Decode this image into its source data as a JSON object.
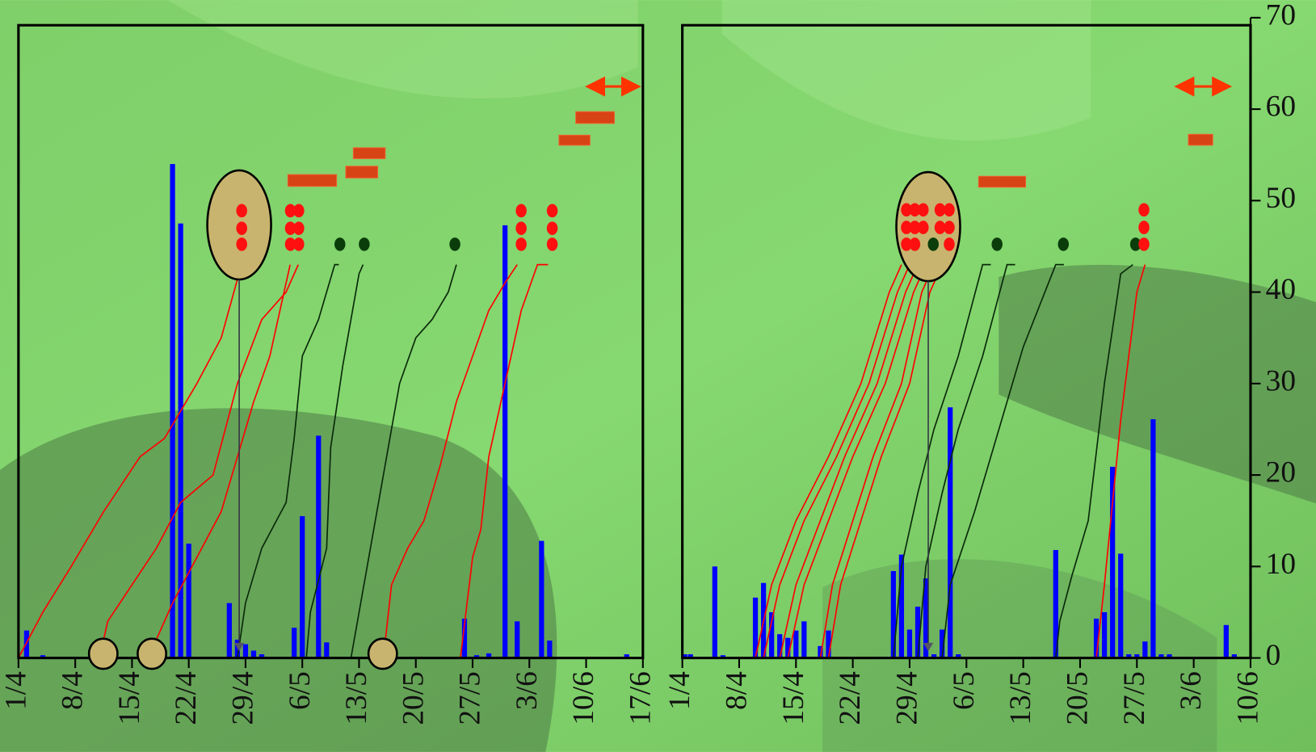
{
  "chart_data": [
    {
      "type": "combo",
      "xlim": [
        0,
        77
      ],
      "ylim": [
        0,
        70
      ],
      "xticks": [
        {
          "value": 0,
          "label": "1/4"
        },
        {
          "value": 7,
          "label": "8/4"
        },
        {
          "value": 14,
          "label": "15/4"
        },
        {
          "value": 21,
          "label": "22/4"
        },
        {
          "value": 28,
          "label": "29/4"
        },
        {
          "value": 35,
          "label": "6/5"
        },
        {
          "value": 42,
          "label": "13/5"
        },
        {
          "value": 49,
          "label": "20/5"
        },
        {
          "value": 56,
          "label": "27/5"
        },
        {
          "value": 63,
          "label": "3/6"
        },
        {
          "value": 70,
          "label": "10/6"
        },
        {
          "value": 77,
          "label": "17/6"
        }
      ],
      "bars": {
        "color": "#0000ff",
        "x": [
          1,
          3,
          19,
          20,
          21,
          26,
          27,
          28,
          29,
          30,
          34,
          35,
          37,
          38,
          55,
          56.5,
          58,
          60,
          61.5,
          64.5,
          65.5,
          75
        ],
        "values": [
          3,
          0.3,
          54,
          47.5,
          12.5,
          6,
          2,
          1.5,
          0.8,
          0.4,
          3.3,
          15.5,
          24.3,
          1.7,
          4.3,
          0.3,
          0.5,
          47.3,
          4,
          12.8,
          1.9,
          0.4
        ]
      },
      "curves": [
        {
          "color": "#ff0000",
          "x": [
            0,
            3,
            6.5,
            10.5,
            15,
            18,
            22,
            25,
            27.5
          ],
          "values": [
            0,
            5,
            10,
            16,
            22,
            24,
            30,
            35,
            43
          ]
        },
        {
          "color": "#ff0000",
          "x": [
            10,
            11,
            14,
            17,
            20,
            24,
            27,
            30,
            33,
            34.5
          ],
          "values": [
            0,
            4,
            8,
            12,
            17,
            20,
            30,
            37,
            40,
            43
          ]
        },
        {
          "color": "#ff0000",
          "x": [
            16,
            19,
            22,
            25,
            27,
            29,
            31,
            33.5
          ],
          "values": [
            0,
            6,
            11,
            16,
            22,
            28,
            33,
            43
          ]
        },
        {
          "color": "#0a2a0a",
          "x": [
            27,
            28,
            30,
            33,
            34,
            35,
            37,
            39,
            39.5
          ],
          "values": [
            0,
            6,
            12,
            17,
            24,
            33,
            37,
            43,
            43
          ]
        },
        {
          "color": "#0a2a0a",
          "x": [
            35.5,
            36,
            38,
            38.5,
            40,
            42,
            42.5
          ],
          "values": [
            0,
            5,
            12,
            23,
            32,
            42,
            43
          ]
        },
        {
          "color": "#0a2a0a",
          "x": [
            41,
            43,
            45,
            47,
            49,
            51,
            53,
            54
          ],
          "values": [
            0,
            10,
            20,
            30,
            35,
            37,
            40,
            43
          ]
        },
        {
          "color": "#ff0000",
          "x": [
            45,
            46,
            48,
            50,
            52,
            54,
            56,
            58,
            60,
            61.5
          ],
          "values": [
            0,
            8,
            12,
            15,
            21,
            28,
            33,
            38,
            41,
            43
          ]
        },
        {
          "color": "#ff0000",
          "x": [
            54.5,
            56,
            57,
            58,
            60,
            62,
            64,
            65.3
          ],
          "values": [
            0,
            11,
            14,
            22,
            30,
            38,
            43,
            43
          ]
        }
      ]
    },
    {
      "type": "combo",
      "xlim": [
        0,
        70
      ],
      "ylim": [
        0,
        70
      ],
      "xticks": [
        {
          "value": 0,
          "label": "1/4"
        },
        {
          "value": 7,
          "label": "8/4"
        },
        {
          "value": 14,
          "label": "15/4"
        },
        {
          "value": 21,
          "label": "22/4"
        },
        {
          "value": 28,
          "label": "29/4"
        },
        {
          "value": 35,
          "label": "6/5"
        },
        {
          "value": 42,
          "label": "13/5"
        },
        {
          "value": 49,
          "label": "20/5"
        },
        {
          "value": 56,
          "label": "27/5"
        },
        {
          "value": 63,
          "label": "3/6"
        },
        {
          "value": 70,
          "label": "10/6"
        }
      ],
      "yticks": [
        0,
        10,
        20,
        30,
        40,
        50,
        60,
        70
      ],
      "bars": {
        "color": "#0000ff",
        "x": [
          0.3,
          1,
          4,
          5,
          9,
          10,
          11,
          12,
          13,
          14,
          15,
          17,
          18,
          26,
          27,
          28,
          29,
          30,
          31,
          32,
          33,
          34,
          46,
          51,
          52,
          53,
          54,
          55,
          56,
          57,
          58,
          59,
          60,
          67,
          68
        ],
        "values": [
          0.4,
          0.4,
          10,
          0.3,
          6.6,
          8.2,
          5,
          2.6,
          2.2,
          3,
          4,
          1.3,
          3,
          9.5,
          11.3,
          3.1,
          5.6,
          8.7,
          0.4,
          3.1,
          27.4,
          0.4,
          11.8,
          4.3,
          5,
          20.9,
          11.4,
          0.4,
          0.4,
          1.8,
          26.1,
          0.4,
          0.4,
          3.6,
          0.4
        ]
      },
      "curves": [
        {
          "color": "#ff0000",
          "x": [
            9,
            11,
            14,
            18,
            22,
            25.5,
            27
          ],
          "values": [
            0,
            8,
            15,
            22,
            30,
            40,
            43
          ]
        },
        {
          "color": "#ff0000",
          "x": [
            10,
            12,
            15,
            19,
            23,
            26.5,
            28
          ],
          "values": [
            0,
            8,
            15,
            22,
            30,
            40,
            43
          ]
        },
        {
          "color": "#ff0000",
          "x": [
            12,
            14,
            17,
            20,
            24,
            27.5,
            29
          ],
          "values": [
            0,
            8,
            15,
            22,
            30,
            40,
            43
          ]
        },
        {
          "color": "#ff0000",
          "x": [
            13,
            15,
            18,
            21,
            25,
            28.5,
            30
          ],
          "values": [
            0,
            8,
            15,
            22,
            30,
            40,
            43
          ]
        },
        {
          "color": "#ff0000",
          "x": [
            17,
            18.5,
            21,
            23.5,
            27,
            29.5,
            31
          ],
          "values": [
            0,
            8,
            15,
            22,
            30,
            40,
            43
          ]
        },
        {
          "color": "#ff0000",
          "x": [
            18,
            19.5,
            22,
            24.5,
            28,
            30.5,
            32
          ],
          "values": [
            0,
            8,
            15,
            22,
            30,
            40,
            43
          ]
        },
        {
          "color": "#0a2a0a",
          "x": [
            26,
            27,
            29,
            31,
            34,
            37,
            38
          ],
          "values": [
            0,
            10,
            18,
            25,
            33,
            43,
            43
          ]
        },
        {
          "color": "#0a2a0a",
          "x": [
            29,
            30,
            32,
            34,
            37,
            40,
            41
          ],
          "values": [
            0,
            10,
            18,
            25,
            33,
            43,
            43
          ]
        },
        {
          "color": "#0a2a0a",
          "x": [
            32,
            33,
            36,
            39,
            42,
            46,
            47
          ],
          "values": [
            0,
            8,
            16,
            25,
            34,
            43,
            43
          ]
        },
        {
          "color": "#0a2a0a",
          "x": [
            46,
            46.5,
            48,
            50,
            52,
            54,
            55.5
          ],
          "values": [
            0,
            4,
            9,
            15,
            30,
            42,
            43
          ]
        },
        {
          "color": "#ff0000",
          "x": [
            51,
            52,
            53,
            54,
            55,
            56,
            57
          ],
          "values": [
            0,
            8,
            17,
            26,
            33,
            40,
            43
          ]
        }
      ]
    }
  ]
}
